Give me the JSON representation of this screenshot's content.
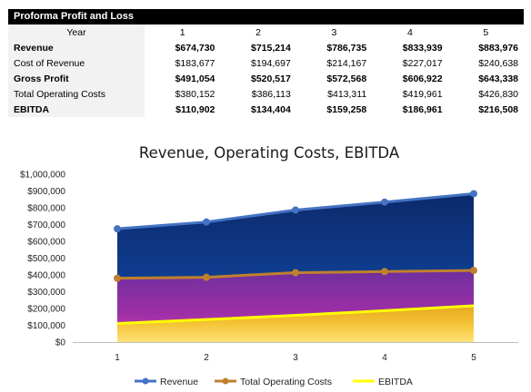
{
  "table": {
    "title": "Proforma Profit and Loss",
    "header_label": "Year",
    "years": [
      "1",
      "2",
      "3",
      "4",
      "5"
    ],
    "rows": [
      {
        "label": "Revenue",
        "bold": true,
        "values": [
          "$674,730",
          "$715,214",
          "$786,735",
          "$833,939",
          "$883,976"
        ]
      },
      {
        "label": "Cost of Revenue",
        "bold": false,
        "values": [
          "$183,677",
          "$194,697",
          "$214,167",
          "$227,017",
          "$240,638"
        ]
      },
      {
        "label": "Gross Profit",
        "bold": true,
        "values": [
          "$491,054",
          "$520,517",
          "$572,568",
          "$606,922",
          "$643,338"
        ]
      },
      {
        "label": "Total Operating Costs",
        "bold": false,
        "values": [
          "$380,152",
          "$386,113",
          "$413,311",
          "$419,961",
          "$426,830"
        ]
      },
      {
        "label": "EBITDA",
        "bold": true,
        "values": [
          "$110,902",
          "$134,404",
          "$159,258",
          "$186,961",
          "$216,508"
        ]
      }
    ]
  },
  "chart_data": {
    "type": "area",
    "title": "Revenue, Operating Costs, EBITDA",
    "categories": [
      "1",
      "2",
      "3",
      "4",
      "5"
    ],
    "ylim": [
      0,
      1000000
    ],
    "y_ticks": [
      0,
      100000,
      200000,
      300000,
      400000,
      500000,
      600000,
      700000,
      800000,
      900000,
      1000000
    ],
    "y_tick_labels": [
      "$0",
      "$100,000",
      "$200,000",
      "$300,000",
      "$400,000",
      "$500,000",
      "$600,000",
      "$700,000",
      "$800,000",
      "$900,000",
      "$1,000,000"
    ],
    "grid": false,
    "legend_position": "bottom",
    "series": [
      {
        "name": "Revenue",
        "values": [
          674730,
          715214,
          786735,
          833939,
          883976
        ],
        "line_color": "#4472c4"
      },
      {
        "name": "Total Operating Costs",
        "values": [
          380152,
          386113,
          413311,
          419961,
          426830
        ],
        "line_color": "#c0812d"
      },
      {
        "name": "EBITDA",
        "values": [
          110902,
          134404,
          159258,
          186961,
          216508
        ],
        "line_color": "#ffff00"
      }
    ]
  }
}
